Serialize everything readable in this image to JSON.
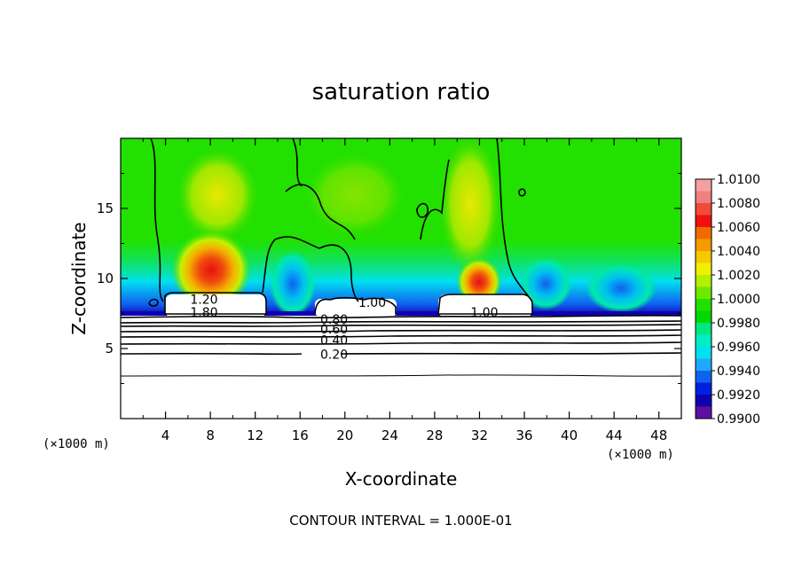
{
  "chart_data": {
    "type": "heatmap",
    "title": "saturation ratio",
    "xlabel": "X-coordinate",
    "ylabel": "Z-coordinate",
    "x_unit_label": "(×1000 m)",
    "xlim": [
      0,
      50
    ],
    "ylim": [
      0,
      20
    ],
    "x_ticks": [
      4,
      8,
      12,
      16,
      20,
      24,
      28,
      32,
      36,
      40,
      44,
      48
    ],
    "y_ticks": [
      5,
      10,
      15
    ],
    "colorbar": {
      "min": 0.99,
      "max": 1.01,
      "labels": [
        "1.0100",
        "1.0080",
        "1.0060",
        "1.0040",
        "1.0020",
        "1.0000",
        "0.9980",
        "0.9960",
        "0.9940",
        "0.9920",
        "0.9900"
      ],
      "colors": [
        "#f5a0a0",
        "#f08080",
        "#f04a3a",
        "#f01010",
        "#f06a00",
        "#f59a00",
        "#f5c800",
        "#f0f000",
        "#b4ee00",
        "#6ee800",
        "#22e000",
        "#00d800",
        "#00e880",
        "#00eec0",
        "#00e0f0",
        "#20a8ff",
        "#1060f0",
        "#0020e0",
        "#1000b0",
        "#6010a0"
      ]
    },
    "contours": [
      {
        "label": "1.20",
        "x": 6.2,
        "z": 8.5
      },
      {
        "label": "1.80",
        "x": 6.2,
        "z": 7.6
      },
      {
        "label": "0.80",
        "x": 17.8,
        "z": 7.1
      },
      {
        "label": "0.60",
        "x": 17.8,
        "z": 6.4
      },
      {
        "label": "0.40",
        "x": 17.8,
        "z": 5.6
      },
      {
        "label": "0.20",
        "x": 17.8,
        "z": 4.6
      },
      {
        "label": "1.00",
        "x": 21.2,
        "z": 8.3
      },
      {
        "label": "1.00",
        "x": 31.2,
        "z": 7.6
      }
    ],
    "contour_interval_text": "CONTOUR INTERVAL = 1.000E-01"
  }
}
